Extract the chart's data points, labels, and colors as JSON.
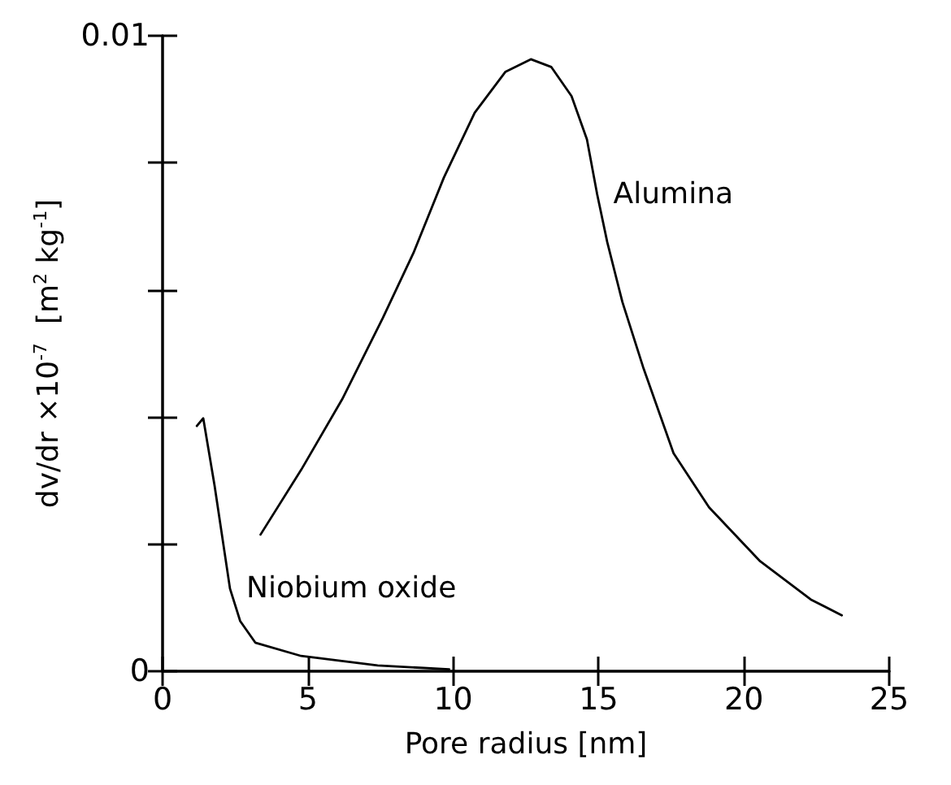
{
  "chart_data": {
    "type": "line",
    "xlabel": "Pore radius [nm]",
    "ylabel": "dv/dr ×10$^{-7}$  [m$^{2}$ kg$^{-1}$]",
    "xlim": [
      0,
      25
    ],
    "xticks": [
      0,
      5,
      10,
      15,
      20,
      25
    ],
    "ylim": [
      0,
      0.01
    ],
    "yticks": [
      0,
      {
        "value": 0.002,
        "label": null
      },
      {
        "value": 0.004,
        "label": null
      },
      {
        "value": 0.006,
        "label": null
      },
      {
        "value": 0.008,
        "label": null
      },
      0.01
    ],
    "marker": "none",
    "line_style": "solid",
    "series": [
      {
        "name": "Alumina",
        "color": "#000000",
        "x": [
          3.37,
          4.77,
          6.18,
          7.58,
          8.63,
          9.68,
          10.74,
          11.79,
          12.67,
          13.37,
          14.07,
          14.6,
          14.95,
          15.3,
          15.82,
          16.53,
          17.58,
          18.8,
          20.56,
          22.3,
          23.37
        ],
        "values": [
          0.00215,
          0.00317,
          0.00428,
          0.00556,
          0.00658,
          0.00777,
          0.00879,
          0.00943,
          0.00963,
          0.00951,
          0.00905,
          0.00837,
          0.00751,
          0.00675,
          0.00581,
          0.00479,
          0.00343,
          0.00258,
          0.00173,
          0.00113,
          0.00088
        ]
      },
      {
        "name": "Niobium oxide",
        "color": "#000000",
        "x": [
          1.18,
          1.4,
          1.79,
          2.32,
          2.67,
          3.19,
          4.77,
          7.4,
          9.86
        ],
        "values": [
          0.00386,
          0.00398,
          0.00292,
          0.0013,
          0.00079,
          0.00045,
          0.00024,
          9e-05,
          3e-05
        ]
      }
    ]
  }
}
